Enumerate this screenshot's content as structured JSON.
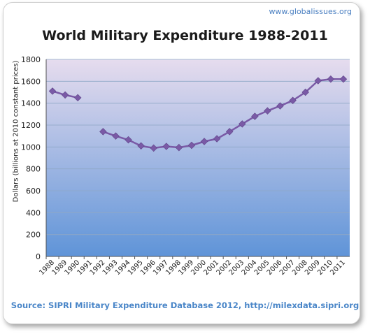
{
  "watermark": "www.globalissues.org",
  "source": "Source: SIPRI Military Expenditure Database 2012, http://milexdata.sipri.org",
  "colors": {
    "line": "#7a5aa6",
    "marker": "#7a5aa6",
    "bg_top": "#e6dcee",
    "bg_bottom": "#5f94d8"
  },
  "chart_data": {
    "type": "line",
    "title": "World Military Expenditure 1988-2011",
    "ylabel": "Dollars (billions at 2010 constant prices)",
    "xlabel": "",
    "ylim": [
      0,
      1800
    ],
    "yticks": [
      0,
      200,
      400,
      600,
      800,
      1000,
      1200,
      1400,
      1600,
      1800
    ],
    "grid": true,
    "categories": [
      "1988",
      "1989",
      "1990",
      "1991",
      "1992",
      "1993",
      "1994",
      "1995",
      "1996",
      "1997",
      "1998",
      "1999",
      "2000",
      "2001",
      "2002",
      "2003",
      "2004",
      "2005",
      "2006",
      "2007",
      "2008",
      "2009",
      "2010",
      "2011"
    ],
    "values": [
      1510,
      1475,
      1450,
      null,
      1140,
      1100,
      1065,
      1010,
      990,
      1005,
      995,
      1015,
      1050,
      1075,
      1140,
      1210,
      1280,
      1330,
      1375,
      1425,
      1500,
      1605,
      1620,
      1620
    ]
  }
}
